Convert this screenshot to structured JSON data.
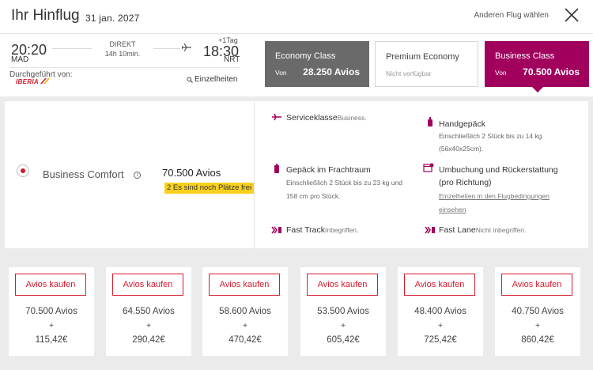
{
  "header": {
    "title": "Ihr Hinflug",
    "date": "31 jan. 2027",
    "other_flight": "Anderen Flug wählen"
  },
  "flight": {
    "departure_time": "20:20",
    "departure_airport": "MAD",
    "stops": "DIREKT",
    "duration": "14h 10min.",
    "arrival_time": "18:30",
    "arrival_airport": "NRT",
    "day_offset": "+1Tag",
    "operated_by_label": "Durchgeführt von:",
    "carrier": "IBERIA",
    "details_link": "Einzelheiten"
  },
  "cabins": [
    {
      "name": "Economy Class",
      "label": "Von",
      "value": "28.250 Avios"
    },
    {
      "name": "Premium Economy",
      "label": "Nicht verfügbar",
      "value": ""
    },
    {
      "name": "Business Class",
      "label": "Von",
      "value": "70.500 Avios"
    }
  ],
  "fare": {
    "name": "Business Comfort",
    "avios": "70.500 Avios",
    "seats_left": "2 Es sind noch Plätze frei"
  },
  "features": {
    "service_class": {
      "title": "Serviceklasse",
      "note": "Business."
    },
    "hand_baggage": {
      "title": "Handgepäck",
      "line1": "Einschließlich 2 Stück bis zu 14 kg",
      "line2": "(56x40x25cm)."
    },
    "checked_baggage": {
      "title": "Gepäck im Frachtraum",
      "line1": "Einschließlich 2 Stück bis zu 23 kg und",
      "line2": "158 cm pro Stück."
    },
    "changes": {
      "title1": "Umbuchung und Rückerstattung",
      "title2": "(pro Richtung)",
      "link1": "Einzelheiten in den Flugbedingungen",
      "link2": "einsehen"
    },
    "fast_track": {
      "title": "Fast Track",
      "note": "Inbegriffen."
    },
    "fast_lane": {
      "title": "Fast Lane",
      "note": "Nicht inbegriffen."
    }
  },
  "options": [
    {
      "button": "Avios kaufen",
      "avios": "70.500 Avios",
      "plus": "+",
      "price": "115,42€"
    },
    {
      "button": "Avios kaufen",
      "avios": "64.550 Avios",
      "plus": "+",
      "price": "290,42€"
    },
    {
      "button": "Avios kaufen",
      "avios": "58.600 Avios",
      "plus": "+",
      "price": "470,42€"
    },
    {
      "button": "Avios kaufen",
      "avios": "53.500 Avios",
      "plus": "+",
      "price": "605,42€"
    },
    {
      "button": "Avios kaufen",
      "avios": "48.400 Avios",
      "plus": "+",
      "price": "725,42€"
    },
    {
      "button": "Avios kaufen",
      "avios": "40.750 Avios",
      "plus": "+",
      "price": "860,42€"
    }
  ],
  "colors": {
    "brand": "#a1005d",
    "accent_red": "#d7192d",
    "economy_bg": "#6a6a6a",
    "badge_yellow": "#f9d11c"
  }
}
